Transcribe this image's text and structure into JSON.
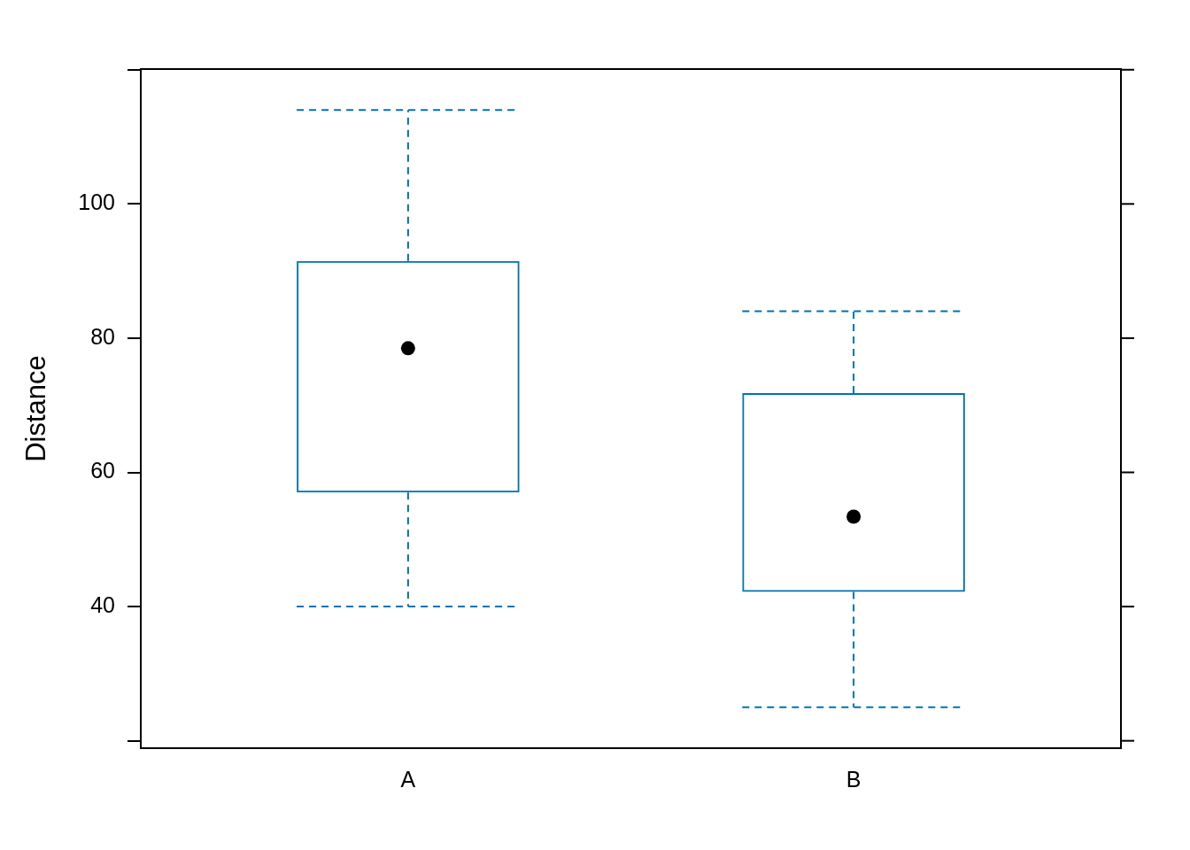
{
  "chart_data": {
    "type": "box",
    "categories": [
      "A",
      "B"
    ],
    "boxes": [
      {
        "low": 40,
        "q1": 57,
        "median": 78.5,
        "q3": 91.5,
        "high": 114
      },
      {
        "low": 25,
        "q1": 42.2,
        "median": 53.4,
        "q3": 71.8,
        "high": 84
      }
    ],
    "color": "#0072b2",
    "ylabel": "Distance",
    "ylim": [
      18.9,
      120.1
    ],
    "yticks": [
      {
        "value": 20,
        "label": null
      },
      {
        "value": 40,
        "label": "40"
      },
      {
        "value": 60,
        "label": "60"
      },
      {
        "value": 80,
        "label": "80"
      },
      {
        "value": 100,
        "label": "100"
      },
      {
        "value": 120,
        "label": null
      }
    ],
    "marker": "circle",
    "line_style": "dashed"
  }
}
